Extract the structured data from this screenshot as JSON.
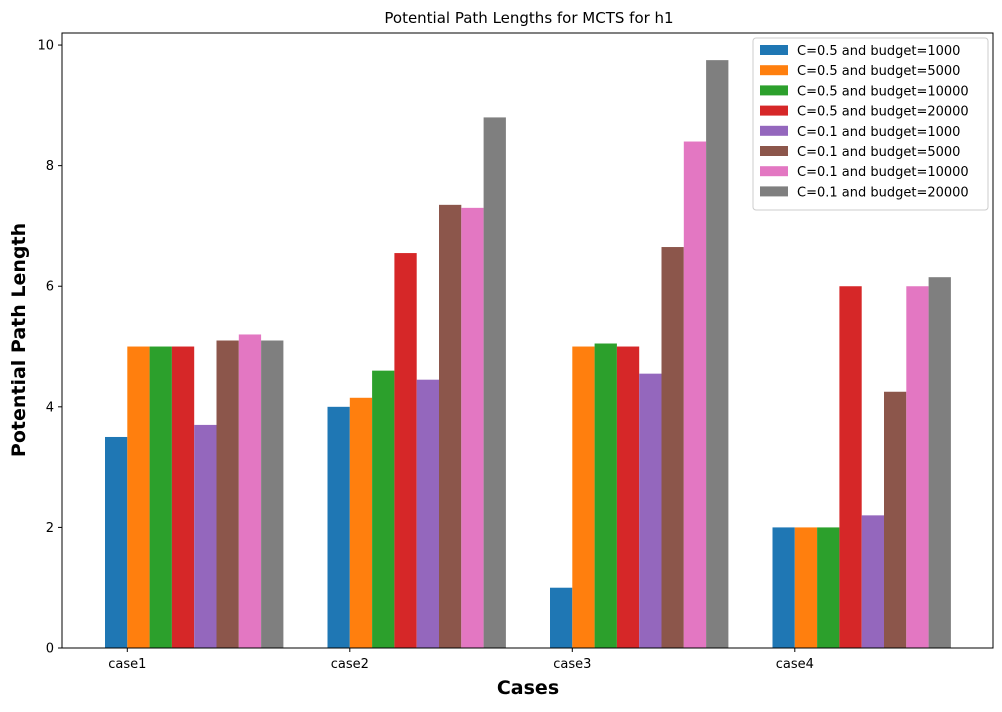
{
  "chart_data": {
    "type": "bar",
    "title": "Potential Path Lengths for MCTS for h1",
    "xlabel": "Cases",
    "ylabel": "Potential Path Length",
    "categories": [
      "case1",
      "case2",
      "case3",
      "case4"
    ],
    "ylim": [
      0,
      10.2
    ],
    "yticks": [
      "0",
      "2",
      "4",
      "6",
      "8",
      "10"
    ],
    "grid": false,
    "legend_position": "top-right",
    "series": [
      {
        "name": "C=0.5 and budget=1000",
        "color": "#1f77b4",
        "values": [
          3.5,
          4.0,
          1.0,
          2.0
        ]
      },
      {
        "name": "C=0.5 and budget=5000",
        "color": "#ff7f0e",
        "values": [
          5.0,
          4.15,
          5.0,
          2.0
        ]
      },
      {
        "name": "C=0.5 and budget=10000",
        "color": "#2ca02c",
        "values": [
          5.0,
          4.6,
          5.05,
          2.0
        ]
      },
      {
        "name": "C=0.5 and budget=20000",
        "color": "#d62728",
        "values": [
          5.0,
          6.55,
          5.0,
          6.0
        ]
      },
      {
        "name": "C=0.1 and budget=1000",
        "color": "#9467bd",
        "values": [
          3.7,
          4.45,
          4.55,
          2.2
        ]
      },
      {
        "name": "C=0.1 and budget=5000",
        "color": "#8c564b",
        "values": [
          5.1,
          7.35,
          6.65,
          4.25
        ]
      },
      {
        "name": "C=0.1 and budget=10000",
        "color": "#e377c2",
        "values": [
          5.2,
          7.3,
          8.4,
          6.0
        ]
      },
      {
        "name": "C=0.1 and budget=20000",
        "color": "#7f7f7f",
        "values": [
          5.1,
          8.8,
          9.75,
          6.15
        ]
      }
    ]
  }
}
